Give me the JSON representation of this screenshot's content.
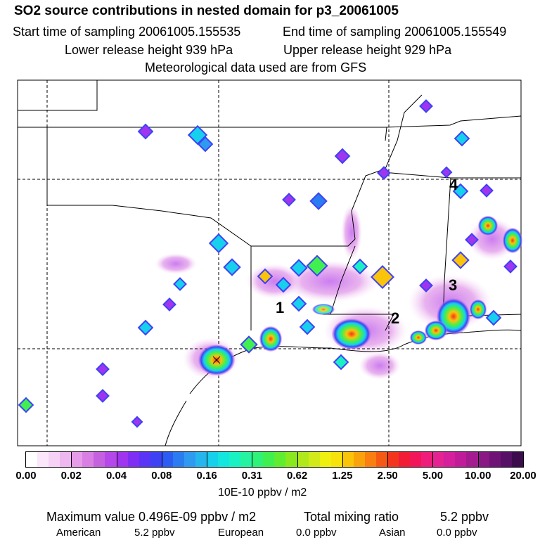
{
  "header": {
    "title": "SO2 source contributions in nested domain for p3_20061005",
    "start_label": "Start time of sampling 20061005.155535",
    "end_label": "End time of sampling 20061005.155549",
    "lower_label": "Lower release height  939 hPa",
    "upper_label": "Upper release height  929 hPa",
    "met_label": "Meteorological data used are from GFS"
  },
  "chart_data": {
    "type": "heatmap",
    "title": "SO2 source contributions in nested domain for p3_20061005",
    "xlabel": "",
    "ylabel": "",
    "source_markers": [
      {
        "label": "1",
        "position": "east Texas near Louisiana border"
      },
      {
        "label": "2",
        "position": "southern Louisiana near Mississippi"
      },
      {
        "label": "3",
        "position": "southern Alabama"
      },
      {
        "label": "4",
        "position": "northern Alabama"
      }
    ],
    "colorbar": {
      "units": "10E-10 ppbv / m2",
      "tick_labels": [
        "0.00",
        "0.02",
        "0.04",
        "0.08",
        "0.16",
        "0.31",
        "0.62",
        "1.25",
        "2.50",
        "5.00",
        "10.00",
        "20.00"
      ],
      "colors": [
        "#ffffff",
        "#fbe6fb",
        "#f6d2f6",
        "#efb7ef",
        "#e69ce8",
        "#d97fe3",
        "#c561df",
        "#b647ea",
        "#9f35ee",
        "#7f2ef3",
        "#5a35f7",
        "#3e42f5",
        "#2c5cf2",
        "#2b7cf0",
        "#2e9bf0",
        "#25b6ee",
        "#17d0ec",
        "#13e6df",
        "#19f1c3",
        "#26f39f",
        "#2ff378",
        "#40f04f",
        "#60ec2f",
        "#8ae81f",
        "#b0e81d",
        "#d2ea19",
        "#eef010",
        "#f7e20c",
        "#f9c40a",
        "#f9a30c",
        "#f87f10",
        "#f55a14",
        "#f3351e",
        "#f21c36",
        "#f2155a",
        "#ef1d7a",
        "#e52292",
        "#d51f9c",
        "#c01c9a",
        "#a41a8f",
        "#8a1885",
        "#6f1476",
        "#561066",
        "#3c0c4c"
      ]
    },
    "colors": {
      "state_border": "#000000",
      "grid": "#000000",
      "background": "#ffffff"
    }
  },
  "footer": {
    "max_label": "Maximum value  0.496E-09 ppbv / m2",
    "total_label": "Total mixing ratio",
    "total_value": "5.2 ppbv",
    "american_label": "American",
    "american_value": "5.2 ppbv",
    "european_label": "European",
    "european_value": "0.0 ppbv",
    "asian_label": "Asian",
    "asian_value": "0.0 ppbv"
  }
}
